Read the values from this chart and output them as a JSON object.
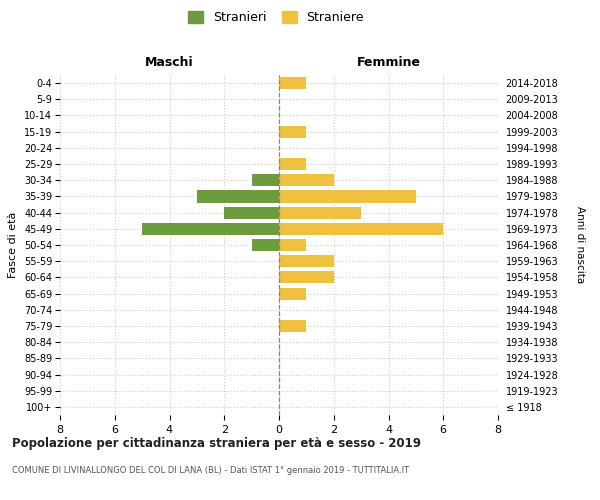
{
  "age_groups": [
    "100+",
    "95-99",
    "90-94",
    "85-89",
    "80-84",
    "75-79",
    "70-74",
    "65-69",
    "60-64",
    "55-59",
    "50-54",
    "45-49",
    "40-44",
    "35-39",
    "30-34",
    "25-29",
    "20-24",
    "15-19",
    "10-14",
    "5-9",
    "0-4"
  ],
  "birth_years": [
    "≤ 1918",
    "1919-1923",
    "1924-1928",
    "1929-1933",
    "1934-1938",
    "1939-1943",
    "1944-1948",
    "1949-1953",
    "1954-1958",
    "1959-1963",
    "1964-1968",
    "1969-1973",
    "1974-1978",
    "1979-1983",
    "1984-1988",
    "1989-1993",
    "1994-1998",
    "1999-2003",
    "2004-2008",
    "2009-2013",
    "2014-2018"
  ],
  "maschi": [
    0,
    0,
    0,
    0,
    0,
    0,
    0,
    0,
    0,
    0,
    1,
    5,
    2,
    3,
    1,
    0,
    0,
    0,
    0,
    0,
    0
  ],
  "femmine": [
    0,
    0,
    0,
    0,
    0,
    1,
    0,
    1,
    2,
    2,
    1,
    6,
    3,
    5,
    2,
    1,
    0,
    1,
    0,
    0,
    1
  ],
  "maschi_color": "#6e9b3e",
  "femmine_color": "#f0c040",
  "title": "Popolazione per cittadinanza straniera per età e sesso - 2019",
  "subtitle": "COMUNE DI LIVINALLONGO DEL COL DI LANA (BL) - Dati ISTAT 1° gennaio 2019 - TUTTITALIA.IT",
  "xlabel_left": "Maschi",
  "xlabel_right": "Femmine",
  "ylabel_left": "Fasce di età",
  "ylabel_right": "Anni di nascita",
  "legend_maschi": "Stranieri",
  "legend_femmine": "Straniere",
  "xlim": 8,
  "background_color": "#ffffff",
  "grid_color": "#cccccc",
  "bar_height": 0.75
}
